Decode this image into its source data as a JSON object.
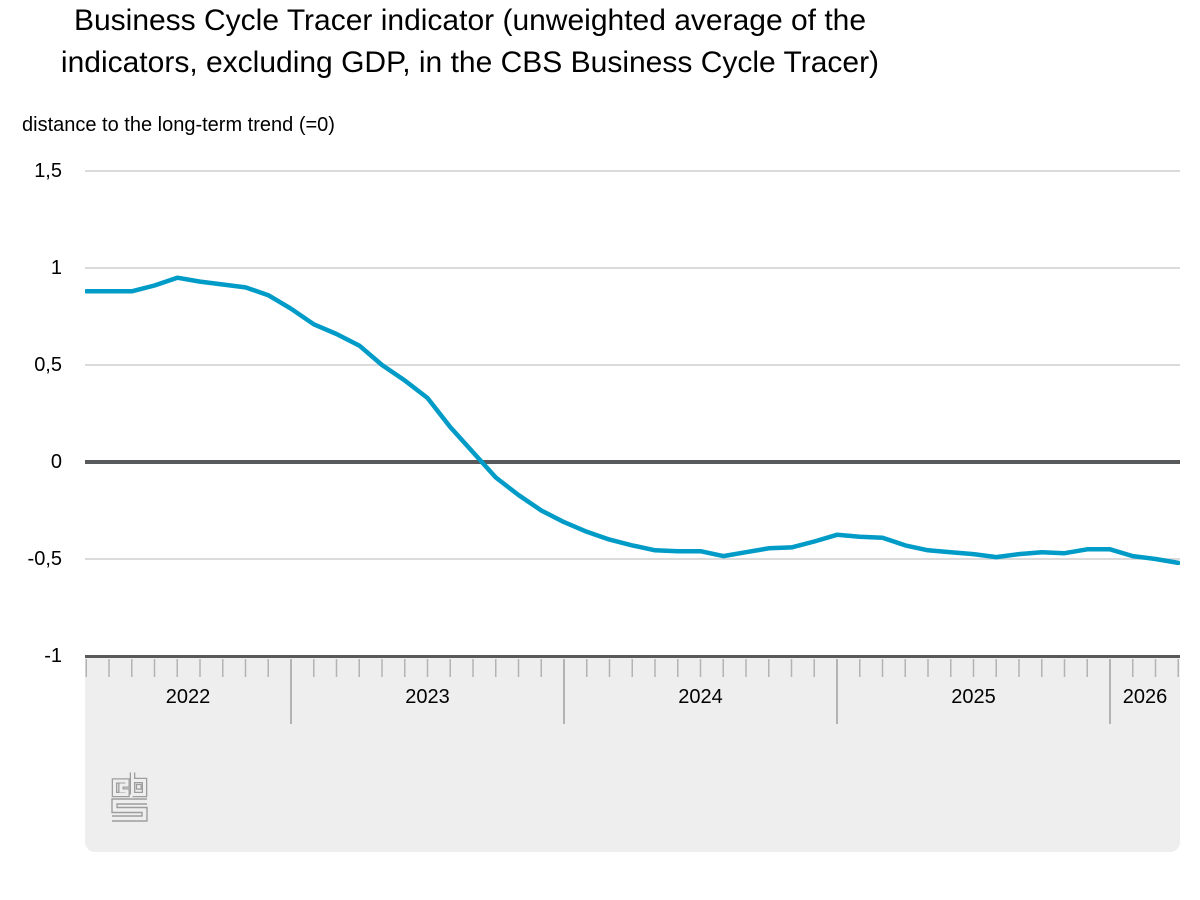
{
  "title": {
    "line1": "Business Cycle Tracer indicator (unweighted average of the",
    "line2": "indicators, excluding GDP, in the CBS Business Cycle Tracer)"
  },
  "subtitle": "distance to the long-term trend (=0)",
  "y_axis": {
    "labels": [
      "1,5",
      "1",
      "0,5",
      "0",
      "-0,5",
      "-1"
    ],
    "values": [
      1.5,
      1,
      0.5,
      0,
      -0.5,
      -1
    ]
  },
  "x_axis": {
    "year_labels": [
      "2022",
      "2023",
      "2024",
      "2025",
      "2026"
    ]
  },
  "logo": {
    "name": "cbs-logo"
  },
  "colors": {
    "line": "#009bc6",
    "zero_line": "#58595b",
    "gridline": "#cfcfcf",
    "band_bg": "#eeeeee",
    "band_border": "#58595b",
    "tick": "#b3b3b3",
    "logo": "#9d9d9d",
    "text": "#000000"
  },
  "chart_data": {
    "type": "line",
    "title": "Business Cycle Tracer indicator (unweighted average of the indicators, excluding GDP, in the CBS Business Cycle Tracer)",
    "ylabel": "distance to the long-term trend (=0)",
    "ylim": [
      -1,
      1.5
    ],
    "y_ticks": [
      1.5,
      1,
      0.5,
      0,
      -0.5,
      -1
    ],
    "grid": "horizontal",
    "zero_line_at": 0,
    "legend_position": "none",
    "x_tick_years": [
      "2022",
      "2023",
      "2024",
      "2025",
      "2026"
    ],
    "series": [
      {
        "name": "Business Cycle Tracer indicator",
        "color": "#009bc6",
        "x": [
          "2022-04",
          "2022-05",
          "2022-06",
          "2022-07",
          "2022-08",
          "2022-09",
          "2022-10",
          "2022-11",
          "2022-12",
          "2023-01",
          "2023-02",
          "2023-03",
          "2023-04",
          "2023-05",
          "2023-06",
          "2023-07",
          "2023-08",
          "2023-09",
          "2023-10",
          "2023-11",
          "2023-12",
          "2024-01",
          "2024-02",
          "2024-03",
          "2024-04",
          "2024-05",
          "2024-06",
          "2024-07",
          "2024-08",
          "2024-09",
          "2024-10",
          "2024-11",
          "2024-12",
          "2025-01",
          "2025-02",
          "2025-03",
          "2025-04",
          "2025-05",
          "2025-06",
          "2025-07",
          "2025-08",
          "2025-09",
          "2025-10",
          "2025-11",
          "2025-12",
          "2026-01",
          "2026-02",
          "2026-03",
          "2026-04"
        ],
        "values": [
          0.88,
          0.88,
          0.88,
          0.91,
          0.95,
          0.93,
          0.915,
          0.9,
          0.86,
          0.79,
          0.71,
          0.66,
          0.6,
          0.5,
          0.42,
          0.33,
          0.18,
          0.05,
          -0.08,
          -0.17,
          -0.25,
          -0.31,
          -0.36,
          -0.4,
          -0.43,
          -0.455,
          -0.46,
          -0.46,
          -0.485,
          -0.465,
          -0.445,
          -0.44,
          -0.41,
          -0.375,
          -0.385,
          -0.39,
          -0.43,
          -0.455,
          -0.465,
          -0.475,
          -0.49,
          -0.475,
          -0.465,
          -0.47,
          -0.45,
          -0.45,
          -0.485,
          -0.5,
          -0.52
        ]
      }
    ]
  }
}
